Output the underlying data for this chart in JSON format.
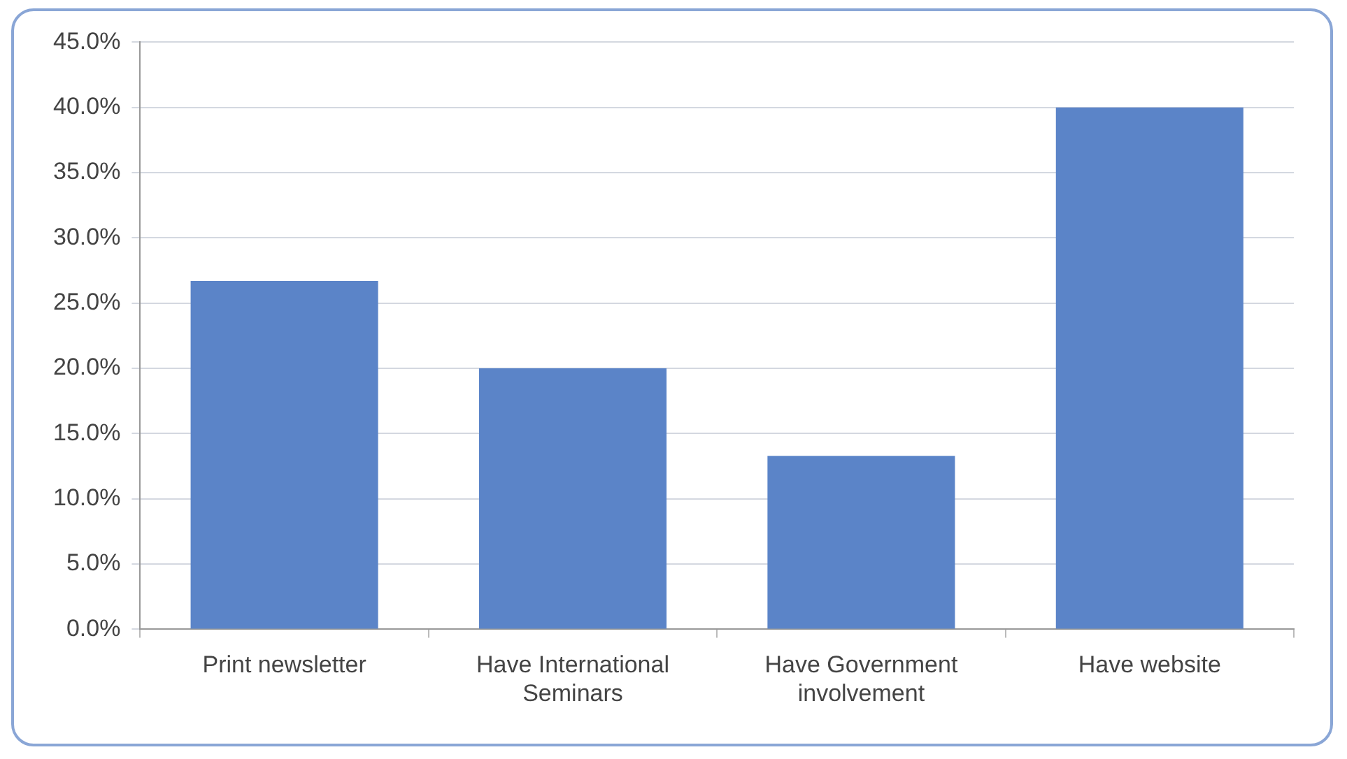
{
  "chart_data": {
    "type": "bar",
    "categories": [
      "Print newsletter",
      "Have International Seminars",
      "Have Government involvement",
      "Have website"
    ],
    "values": [
      26.7,
      20.0,
      13.3,
      40.0
    ],
    "color": "#5b84c8",
    "ylim": [
      0,
      45
    ],
    "yticks": [
      {
        "value": 0,
        "label": "0.0%"
      },
      {
        "value": 5,
        "label": "5.0%"
      },
      {
        "value": 10,
        "label": "10.0%"
      },
      {
        "value": 15,
        "label": "15.0%"
      },
      {
        "value": 20,
        "label": "20.0%"
      },
      {
        "value": 25,
        "label": "25.0%"
      },
      {
        "value": 30,
        "label": "30.0%"
      },
      {
        "value": 35,
        "label": "35.0%"
      },
      {
        "value": 40,
        "label": "40.0%"
      },
      {
        "value": 45,
        "label": "45.0%"
      }
    ],
    "grid": "y"
  }
}
